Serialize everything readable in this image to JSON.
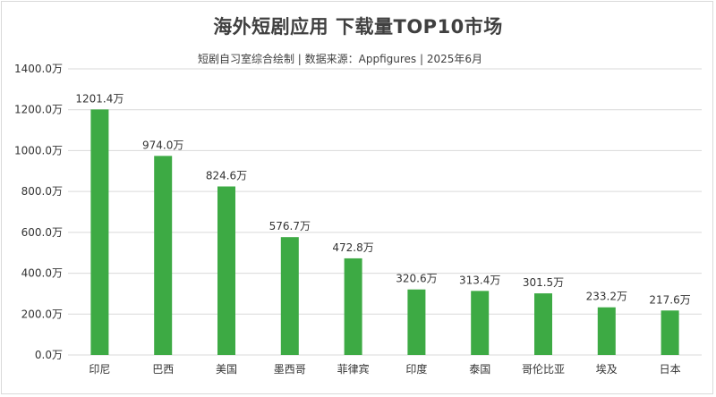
{
  "chart_data": {
    "type": "bar",
    "title": "海外短剧应用 下载量TOP10市场",
    "subtitle": "短剧自习室综合绘制 | 数据来源：Appfigures | 2025年6月",
    "categories": [
      "印尼",
      "巴西",
      "美国",
      "墨西哥",
      "菲律宾",
      "印度",
      "泰国",
      "哥伦比亚",
      "埃及",
      "日本"
    ],
    "values": [
      1201.4,
      974.0,
      824.6,
      576.7,
      472.8,
      320.6,
      313.4,
      301.5,
      233.2,
      217.6
    ],
    "data_labels": [
      "1201.4万",
      "974.0万",
      "824.6万",
      "576.7万",
      "472.8万",
      "320.6万",
      "313.4万",
      "301.5万",
      "233.2万",
      "217.6万"
    ],
    "y_ticks": [
      0,
      200,
      400,
      600,
      800,
      1000,
      1200,
      1400
    ],
    "y_tick_labels": [
      "0.0万",
      "200.0万",
      "400.0万",
      "600.0万",
      "800.0万",
      "1000.0万",
      "1200.0万",
      "1400.0万"
    ],
    "ylim": [
      0,
      1400
    ],
    "grid": true,
    "bar_color": "#3daa44",
    "grid_color": "#d9d9d9",
    "xlabel": "",
    "ylabel": ""
  }
}
